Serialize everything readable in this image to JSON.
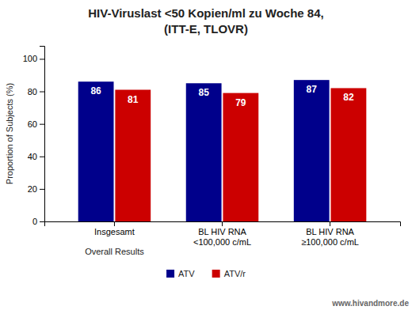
{
  "chart_data": {
    "type": "bar",
    "title": "HIV-Viruslast <50 Kopien/ml zu Woche 84,",
    "subtitle": "(ITT-E, TLOVR)",
    "categories": [
      "Insgesamt",
      "BL HIV RNA\n<100,000 c/mL",
      "BL HIV RNA\n≥100,000 c/mL"
    ],
    "series": [
      {
        "name": "ATV",
        "color": "#00008B",
        "values": [
          86,
          85,
          87
        ]
      },
      {
        "name": "ATV/r",
        "color": "#CC0000",
        "values": [
          81,
          79,
          82
        ]
      }
    ],
    "ylabel": "Proportion of Subjects (%)",
    "annotations": [
      "Overall Results",
      "www.hivandmore.de"
    ],
    "ylim": [
      0,
      108
    ],
    "yticks": [
      0,
      20,
      40,
      60,
      80,
      100
    ],
    "data_labels": true,
    "legend": "bottom",
    "grid": false
  }
}
